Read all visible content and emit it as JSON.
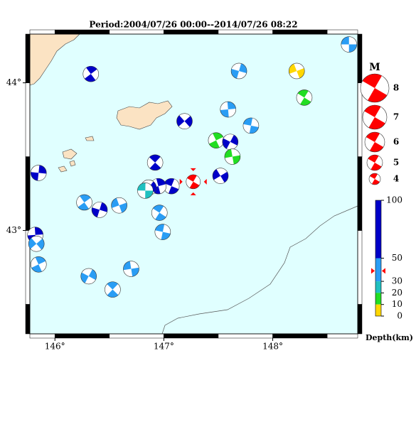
{
  "title": "Period:2004/07/26 00:00--2014/07/26 08:22",
  "map": {
    "xlim": [
      145.77,
      148.78
    ],
    "ylim": [
      42.3,
      44.33
    ],
    "xticks": [
      {
        "value": 146,
        "label": "146°"
      },
      {
        "value": 147,
        "label": "147°"
      },
      {
        "value": 148,
        "label": "148°"
      }
    ],
    "yticks": [
      {
        "value": 43,
        "label": "43°"
      },
      {
        "value": 44,
        "label": "44°"
      }
    ],
    "events": [
      {
        "lon": 148.7,
        "lat": 44.26,
        "color": "#2a9df4"
      },
      {
        "lon": 146.33,
        "lat": 44.06,
        "color": "#0000c8"
      },
      {
        "lon": 147.69,
        "lat": 44.08,
        "color": "#2a9df4"
      },
      {
        "lon": 148.22,
        "lat": 44.08,
        "color": "#ffd700"
      },
      {
        "lon": 148.29,
        "lat": 43.9,
        "color": "#22dd22"
      },
      {
        "lon": 147.59,
        "lat": 43.82,
        "color": "#2a9df4"
      },
      {
        "lon": 147.19,
        "lat": 43.74,
        "color": "#0000c8"
      },
      {
        "lon": 147.8,
        "lat": 43.71,
        "color": "#2a9df4"
      },
      {
        "lon": 147.48,
        "lat": 43.61,
        "color": "#22dd22"
      },
      {
        "lon": 147.61,
        "lat": 43.6,
        "color": "#0000c8"
      },
      {
        "lon": 147.63,
        "lat": 43.5,
        "color": "#22dd22"
      },
      {
        "lon": 146.92,
        "lat": 43.46,
        "color": "#0000c8"
      },
      {
        "lon": 145.85,
        "lat": 43.39,
        "color": "#0000c8"
      },
      {
        "lon": 147.52,
        "lat": 43.37,
        "color": "#0000c8"
      },
      {
        "lon": 147.07,
        "lat": 43.3,
        "color": "#0000c8"
      },
      {
        "lon": 146.95,
        "lat": 43.3,
        "color": "#0000c8"
      },
      {
        "lon": 146.86,
        "lat": 43.29,
        "color": "#0000c8"
      },
      {
        "lon": 146.83,
        "lat": 43.27,
        "color": "#20c0c0"
      },
      {
        "lon": 146.27,
        "lat": 43.19,
        "color": "#2a9df4"
      },
      {
        "lon": 146.41,
        "lat": 43.14,
        "color": "#0000c8"
      },
      {
        "lon": 146.59,
        "lat": 43.17,
        "color": "#2a9df4"
      },
      {
        "lon": 146.96,
        "lat": 43.12,
        "color": "#2a9df4"
      },
      {
        "lon": 145.82,
        "lat": 42.97,
        "color": "#0000c8"
      },
      {
        "lon": 145.83,
        "lat": 42.91,
        "color": "#2a9df4"
      },
      {
        "lon": 146.99,
        "lat": 42.99,
        "color": "#2a9df4"
      },
      {
        "lon": 145.85,
        "lat": 42.77,
        "color": "#2a9df4"
      },
      {
        "lon": 146.31,
        "lat": 42.69,
        "color": "#2a9df4"
      },
      {
        "lon": 146.7,
        "lat": 42.74,
        "color": "#2a9df4"
      },
      {
        "lon": 146.53,
        "lat": 42.6,
        "color": "#2a9df4"
      }
    ],
    "main_event": {
      "lon": 147.27,
      "lat": 43.33,
      "depth": 39,
      "color": "#ff0000"
    }
  },
  "magnitude_legend": {
    "title": "M",
    "values": [
      8,
      7,
      6,
      5,
      4
    ],
    "color": "#ff0000"
  },
  "depth_scale": {
    "label": "Depth(km)",
    "lim": [
      0,
      100
    ],
    "ticks": [
      100,
      50,
      30,
      20,
      10,
      0
    ],
    "colors": [
      "#0000c8",
      "#2a9df4",
      "#20c0c0",
      "#22dd22",
      "#ffd700"
    ]
  }
}
